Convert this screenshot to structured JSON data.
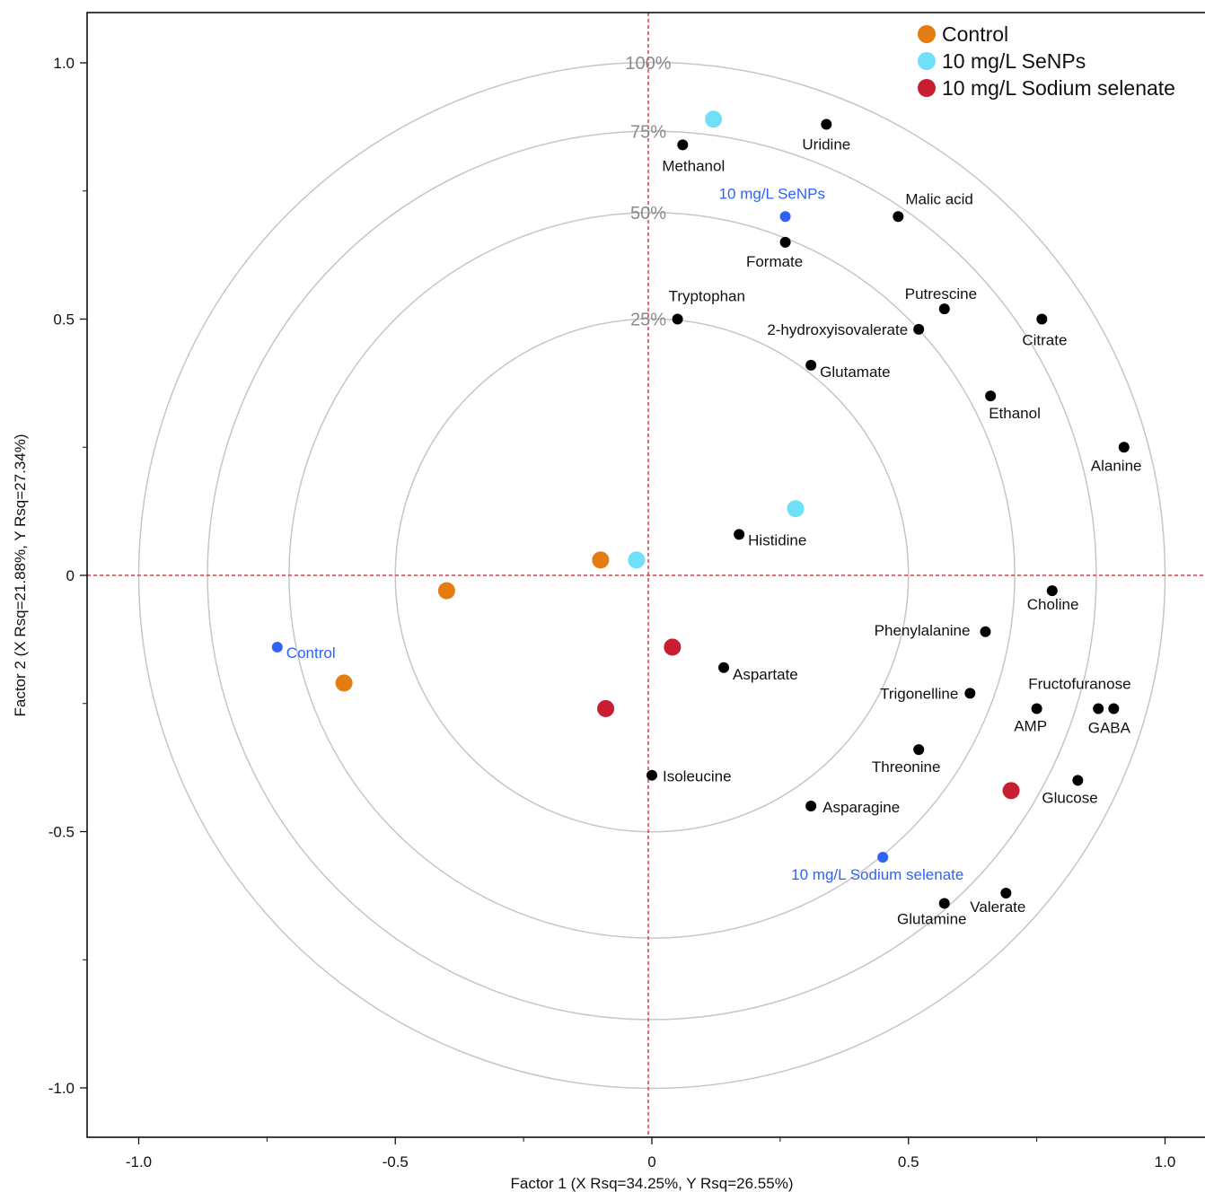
{
  "chart_data": {
    "type": "scatter",
    "title": "",
    "xlabel": "Factor 1 (X Rsq=34.25%, Y Rsq=26.55%)",
    "ylabel": "Factor 2 (X Rsq=21.88%, Y Rsq=27.34%)",
    "xlim": [
      -1.1,
      1.1
    ],
    "ylim": [
      -1.1,
      1.1
    ],
    "x_ticks": [
      {
        "value": -1.0,
        "label": "-1.0"
      },
      {
        "value": -0.5,
        "label": "-0.5"
      },
      {
        "value": 0,
        "label": "0"
      },
      {
        "value": 0.5,
        "label": "0.5"
      },
      {
        "value": 1.0,
        "label": "1.0"
      }
    ],
    "y_ticks": [
      {
        "value": 1.0,
        "label": "1.0"
      },
      {
        "value": 0.5,
        "label": "0.5"
      },
      {
        "value": 0,
        "label": "0"
      },
      {
        "value": -0.5,
        "label": "-0.5"
      },
      {
        "value": -1.0,
        "label": "-1.0"
      }
    ],
    "reference_circles": [
      {
        "radius": 0.5,
        "label": "25%"
      },
      {
        "radius": 0.7071,
        "label": "50%"
      },
      {
        "radius": 0.866,
        "label": "75%"
      },
      {
        "radius": 1.0,
        "label": "100%"
      }
    ],
    "legend_position": "top-right",
    "colors": {
      "Control": "#e57c12",
      "10 mg/L SeNPs": "#6fe0f7",
      "10 mg/L Sodium selenate": "#c91e32",
      "loading": "#000000",
      "group_centroid": "#2f63f5",
      "zero_line": "#e8364a",
      "circle": "#c6c6c6"
    },
    "series": [
      {
        "name": "Control",
        "points": [
          [
            -0.1,
            0.03
          ],
          [
            -0.4,
            -0.03
          ],
          [
            -0.6,
            -0.21
          ]
        ]
      },
      {
        "name": "10 mg/L SeNPs",
        "points": [
          [
            0.12,
            0.89
          ],
          [
            0.28,
            0.13
          ],
          [
            -0.03,
            0.03
          ]
        ]
      },
      {
        "name": "10 mg/L Sodium selenate",
        "points": [
          [
            0.04,
            -0.14
          ],
          [
            -0.09,
            -0.26
          ],
          [
            0.7,
            -0.42
          ]
        ]
      }
    ],
    "group_centroids": [
      {
        "label": "Control",
        "x": -0.73,
        "y": -0.14
      },
      {
        "label": "10 mg/L SeNPs",
        "x": 0.26,
        "y": 0.7
      },
      {
        "label": "10 mg/L Sodium selenate",
        "x": 0.45,
        "y": -0.55
      }
    ],
    "loadings": [
      {
        "label": "Uridine",
        "x": 0.34,
        "y": 0.88
      },
      {
        "label": "Methanol",
        "x": 0.06,
        "y": 0.84
      },
      {
        "label": "Malic acid",
        "x": 0.48,
        "y": 0.7
      },
      {
        "label": "Formate",
        "x": 0.26,
        "y": 0.65
      },
      {
        "label": "Tryptophan",
        "x": 0.05,
        "y": 0.5
      },
      {
        "label": "Putrescine",
        "x": 0.57,
        "y": 0.52
      },
      {
        "label": "2-hydroxyisovalerate",
        "x": 0.52,
        "y": 0.48
      },
      {
        "label": "Citrate",
        "x": 0.76,
        "y": 0.5
      },
      {
        "label": "Glutamate",
        "x": 0.31,
        "y": 0.41
      },
      {
        "label": "Ethanol",
        "x": 0.66,
        "y": 0.35
      },
      {
        "label": "Alanine",
        "x": 0.92,
        "y": 0.25
      },
      {
        "label": "Histidine",
        "x": 0.17,
        "y": 0.08
      },
      {
        "label": "Choline",
        "x": 0.78,
        "y": -0.03
      },
      {
        "label": "Phenylalanine",
        "x": 0.65,
        "y": -0.11
      },
      {
        "label": "Aspartate",
        "x": 0.14,
        "y": -0.18
      },
      {
        "label": "Trigonelline",
        "x": 0.62,
        "y": -0.23
      },
      {
        "label": "AMP",
        "x": 0.75,
        "y": -0.26
      },
      {
        "label": "Fructofuranose",
        "x": 0.87,
        "y": -0.26
      },
      {
        "label": "GABA",
        "x": 0.9,
        "y": -0.26
      },
      {
        "label": "Threonine",
        "x": 0.52,
        "y": -0.34
      },
      {
        "label": "Isoleucine",
        "x": 0.0,
        "y": -0.39
      },
      {
        "label": "Glucose",
        "x": 0.83,
        "y": -0.4
      },
      {
        "label": "Asparagine",
        "x": 0.31,
        "y": -0.45
      },
      {
        "label": "Valerate",
        "x": 0.69,
        "y": -0.62
      },
      {
        "label": "Glutamine",
        "x": 0.57,
        "y": -0.64
      }
    ]
  }
}
